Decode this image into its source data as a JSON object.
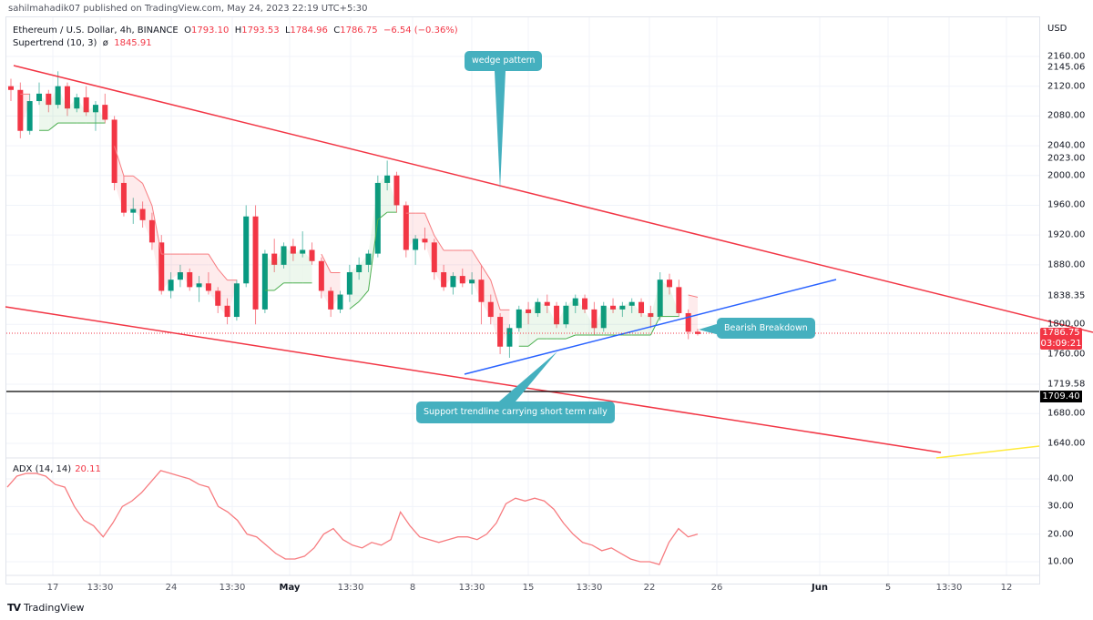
{
  "header": {
    "publisher_line": "sahilmahadik07 published on TradingView.com, May 24, 2023 22:19 UTC+5:30"
  },
  "symbol_legend": {
    "title": "Ethereum / U.S. Dollar, 4h, BINANCE",
    "open_label": "O",
    "open": "1793.10",
    "high_label": "H",
    "high": "1793.53",
    "low_label": "L",
    "low": "1784.96",
    "close_label": "C",
    "close": "1786.75",
    "change": "−6.54 (−0.36%)",
    "indicator_name": "Supertrend (10, 3)",
    "indicator_symbol": "ø",
    "indicator_value": "1845.91"
  },
  "adx_legend": {
    "name": "ADX (14, 14)",
    "value": "20.11"
  },
  "price_axis": {
    "currency": "USD",
    "ticks": [
      "2160.00",
      "2145.06",
      "2120.00",
      "2080.00",
      "2040.00",
      "2023.00",
      "2000.00",
      "1960.00",
      "1920.00",
      "1880.00",
      "1838.35",
      "1800.00",
      "1760.00",
      "1719.58",
      "1680.00",
      "1640.00"
    ],
    "current_price": "1786.75",
    "countdown": "03:09:21",
    "level_label": "1709.40"
  },
  "adx_axis": {
    "ticks": [
      "40.00",
      "30.00",
      "20.00",
      "10.00"
    ]
  },
  "time_axis": {
    "ticks": [
      {
        "label": "17",
        "x": 58,
        "bold": false
      },
      {
        "label": "13:30",
        "x": 110,
        "bold": false
      },
      {
        "label": "24",
        "x": 188,
        "bold": false
      },
      {
        "label": "13:30",
        "x": 255,
        "bold": false
      },
      {
        "label": "May",
        "x": 318,
        "bold": true
      },
      {
        "label": "13:30",
        "x": 385,
        "bold": false
      },
      {
        "label": "8",
        "x": 453,
        "bold": false
      },
      {
        "label": "13:30",
        "x": 518,
        "bold": false
      },
      {
        "label": "15",
        "x": 580,
        "bold": false
      },
      {
        "label": "13:30",
        "x": 647,
        "bold": false
      },
      {
        "label": "22",
        "x": 713,
        "bold": false
      },
      {
        "label": "26",
        "x": 787,
        "bold": false
      },
      {
        "label": "Jun",
        "x": 900,
        "bold": true
      },
      {
        "label": "5",
        "x": 975,
        "bold": false
      },
      {
        "label": "13:30",
        "x": 1042,
        "bold": false
      },
      {
        "label": "12",
        "x": 1105,
        "bold": false
      }
    ]
  },
  "annotations": {
    "wedge": "wedge pattern",
    "breakdown": "Bearish Breakdown",
    "support": "Support trendline carrying short term rally"
  },
  "branding": {
    "logo_mark": "TV",
    "logo_text": "TradingView"
  },
  "colors": {
    "up": "#089981",
    "down": "#f23645",
    "wedge_line": "#f23645",
    "support_line": "#2962ff",
    "level_line": "#000000",
    "callout": "#45b0bf",
    "adx": "#f77c80",
    "supertrend_up": "#4caf50",
    "supertrend_down": "#f77c80",
    "yellow_line": "#ffeb3b"
  },
  "chart_data": {
    "type": "candlestick",
    "title": "Ethereum / U.S. Dollar, 4h, BINANCE",
    "x_range": [
      "Apr 15 2023",
      "Jun 13 2023"
    ],
    "ylabel": "USD",
    "ylim": [
      1615,
      2185
    ],
    "ohlc_approx": [
      [
        2120,
        2130,
        2100,
        2115
      ],
      [
        2115,
        2125,
        2050,
        2060
      ],
      [
        2060,
        2110,
        2055,
        2100
      ],
      [
        2100,
        2125,
        2095,
        2110
      ],
      [
        2110,
        2115,
        2085,
        2095
      ],
      [
        2095,
        2140,
        2090,
        2120
      ],
      [
        2120,
        2125,
        2080,
        2090
      ],
      [
        2090,
        2110,
        2085,
        2105
      ],
      [
        2105,
        2120,
        2080,
        2085
      ],
      [
        2085,
        2100,
        2060,
        2095
      ],
      [
        2095,
        2110,
        2070,
        2075
      ],
      [
        2075,
        2080,
        1980,
        1990
      ],
      [
        1990,
        2000,
        1945,
        1950
      ],
      [
        1950,
        1970,
        1935,
        1955
      ],
      [
        1955,
        1965,
        1930,
        1940
      ],
      [
        1940,
        1950,
        1900,
        1910
      ],
      [
        1910,
        1920,
        1840,
        1845
      ],
      [
        1845,
        1870,
        1835,
        1860
      ],
      [
        1860,
        1880,
        1850,
        1870
      ],
      [
        1870,
        1875,
        1845,
        1850
      ],
      [
        1850,
        1865,
        1830,
        1855
      ],
      [
        1855,
        1870,
        1840,
        1845
      ],
      [
        1845,
        1850,
        1815,
        1825
      ],
      [
        1825,
        1835,
        1800,
        1810
      ],
      [
        1810,
        1860,
        1805,
        1855
      ],
      [
        1855,
        1960,
        1850,
        1945
      ],
      [
        1945,
        1960,
        1800,
        1820
      ],
      [
        1820,
        1900,
        1815,
        1895
      ],
      [
        1895,
        1915,
        1870,
        1880
      ],
      [
        1880,
        1910,
        1875,
        1905
      ],
      [
        1905,
        1915,
        1885,
        1895
      ],
      [
        1895,
        1925,
        1890,
        1900
      ],
      [
        1900,
        1910,
        1880,
        1885
      ],
      [
        1885,
        1890,
        1835,
        1845
      ],
      [
        1845,
        1850,
        1810,
        1820
      ],
      [
        1820,
        1845,
        1815,
        1840
      ],
      [
        1840,
        1880,
        1830,
        1870
      ],
      [
        1870,
        1890,
        1860,
        1880
      ],
      [
        1880,
        1900,
        1870,
        1895
      ],
      [
        1895,
        2000,
        1890,
        1990
      ],
      [
        1990,
        2020,
        1980,
        2000
      ],
      [
        2000,
        2005,
        1950,
        1960
      ],
      [
        1960,
        1965,
        1890,
        1900
      ],
      [
        1900,
        1920,
        1880,
        1915
      ],
      [
        1915,
        1930,
        1900,
        1910
      ],
      [
        1910,
        1915,
        1860,
        1870
      ],
      [
        1870,
        1880,
        1845,
        1850
      ],
      [
        1850,
        1870,
        1840,
        1865
      ],
      [
        1865,
        1875,
        1850,
        1855
      ],
      [
        1855,
        1870,
        1840,
        1860
      ],
      [
        1860,
        1880,
        1800,
        1830
      ],
      [
        1830,
        1840,
        1800,
        1810
      ],
      [
        1810,
        1815,
        1760,
        1770
      ],
      [
        1770,
        1800,
        1755,
        1795
      ],
      [
        1795,
        1825,
        1790,
        1820
      ],
      [
        1820,
        1830,
        1800,
        1815
      ],
      [
        1815,
        1835,
        1810,
        1830
      ],
      [
        1830,
        1840,
        1815,
        1825
      ],
      [
        1825,
        1830,
        1795,
        1800
      ],
      [
        1800,
        1830,
        1795,
        1825
      ],
      [
        1825,
        1840,
        1815,
        1835
      ],
      [
        1835,
        1840,
        1815,
        1820
      ],
      [
        1820,
        1830,
        1785,
        1795
      ],
      [
        1795,
        1830,
        1790,
        1825
      ],
      [
        1825,
        1835,
        1815,
        1820
      ],
      [
        1820,
        1830,
        1810,
        1825
      ],
      [
        1825,
        1835,
        1815,
        1830
      ],
      [
        1830,
        1835,
        1810,
        1815
      ],
      [
        1815,
        1825,
        1795,
        1810
      ],
      [
        1810,
        1870,
        1805,
        1860
      ],
      [
        1860,
        1868,
        1840,
        1850
      ],
      [
        1850,
        1860,
        1810,
        1815
      ],
      [
        1815,
        1820,
        1780,
        1790
      ],
      [
        1790,
        1794,
        1785,
        1787
      ]
    ],
    "overlays": {
      "wedge_upper": [
        [
          15,
          72
        ],
        [
          1200,
          365
        ]
      ],
      "wedge_lower": [
        [
          6,
          337
        ],
        [
          1033,
          497
        ]
      ],
      "support_trendline": [
        [
          510,
          411
        ],
        [
          918,
          307
        ]
      ],
      "horizontal_level": 1709.4,
      "current_price_line": 1786.75
    },
    "adx": {
      "label": "ADX (14, 14)",
      "last": 20.11,
      "ylim": [
        4,
        46
      ],
      "values_approx": [
        37,
        41,
        42,
        42,
        41,
        38,
        37,
        30,
        25,
        23,
        19,
        24,
        30,
        32,
        35,
        39,
        43,
        42,
        41,
        40,
        38,
        37,
        30,
        28,
        25,
        20,
        19,
        16,
        13,
        11,
        11,
        12,
        15,
        20,
        22,
        18,
        16,
        15,
        17,
        16,
        18,
        28,
        23,
        19,
        18,
        17,
        18,
        19,
        19,
        18,
        20,
        24,
        31,
        33,
        32,
        33,
        32,
        29,
        24,
        20,
        17,
        16,
        14,
        15,
        13,
        11,
        10,
        10,
        9,
        17,
        22,
        19,
        20
      ]
    }
  }
}
